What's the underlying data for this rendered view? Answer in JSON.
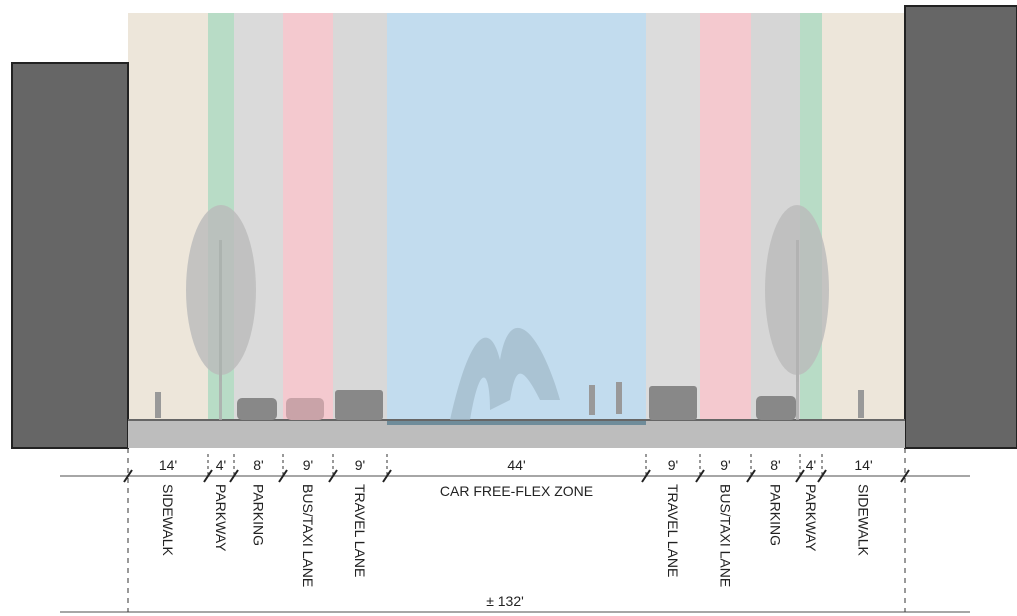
{
  "segments": [
    {
      "width": "14'",
      "name": "SIDEWALK"
    },
    {
      "width": "4'",
      "name": "PARKWAY"
    },
    {
      "width": "8'",
      "name": "PARKING"
    },
    {
      "width": "9'",
      "name": "BUS/TAXI LANE"
    },
    {
      "width": "9'",
      "name": "TRAVEL LANE"
    },
    {
      "width": "44'",
      "name": "CAR FREE-FLEX ZONE"
    },
    {
      "width": "9'",
      "name": "TRAVEL LANE"
    },
    {
      "width": "9'",
      "name": "BUS/TAXI LANE"
    },
    {
      "width": "8'",
      "name": "PARKING"
    },
    {
      "width": "4'",
      "name": "PARKWAY"
    },
    {
      "width": "14'",
      "name": "SIDEWALK"
    }
  ],
  "total": "± 132'"
}
